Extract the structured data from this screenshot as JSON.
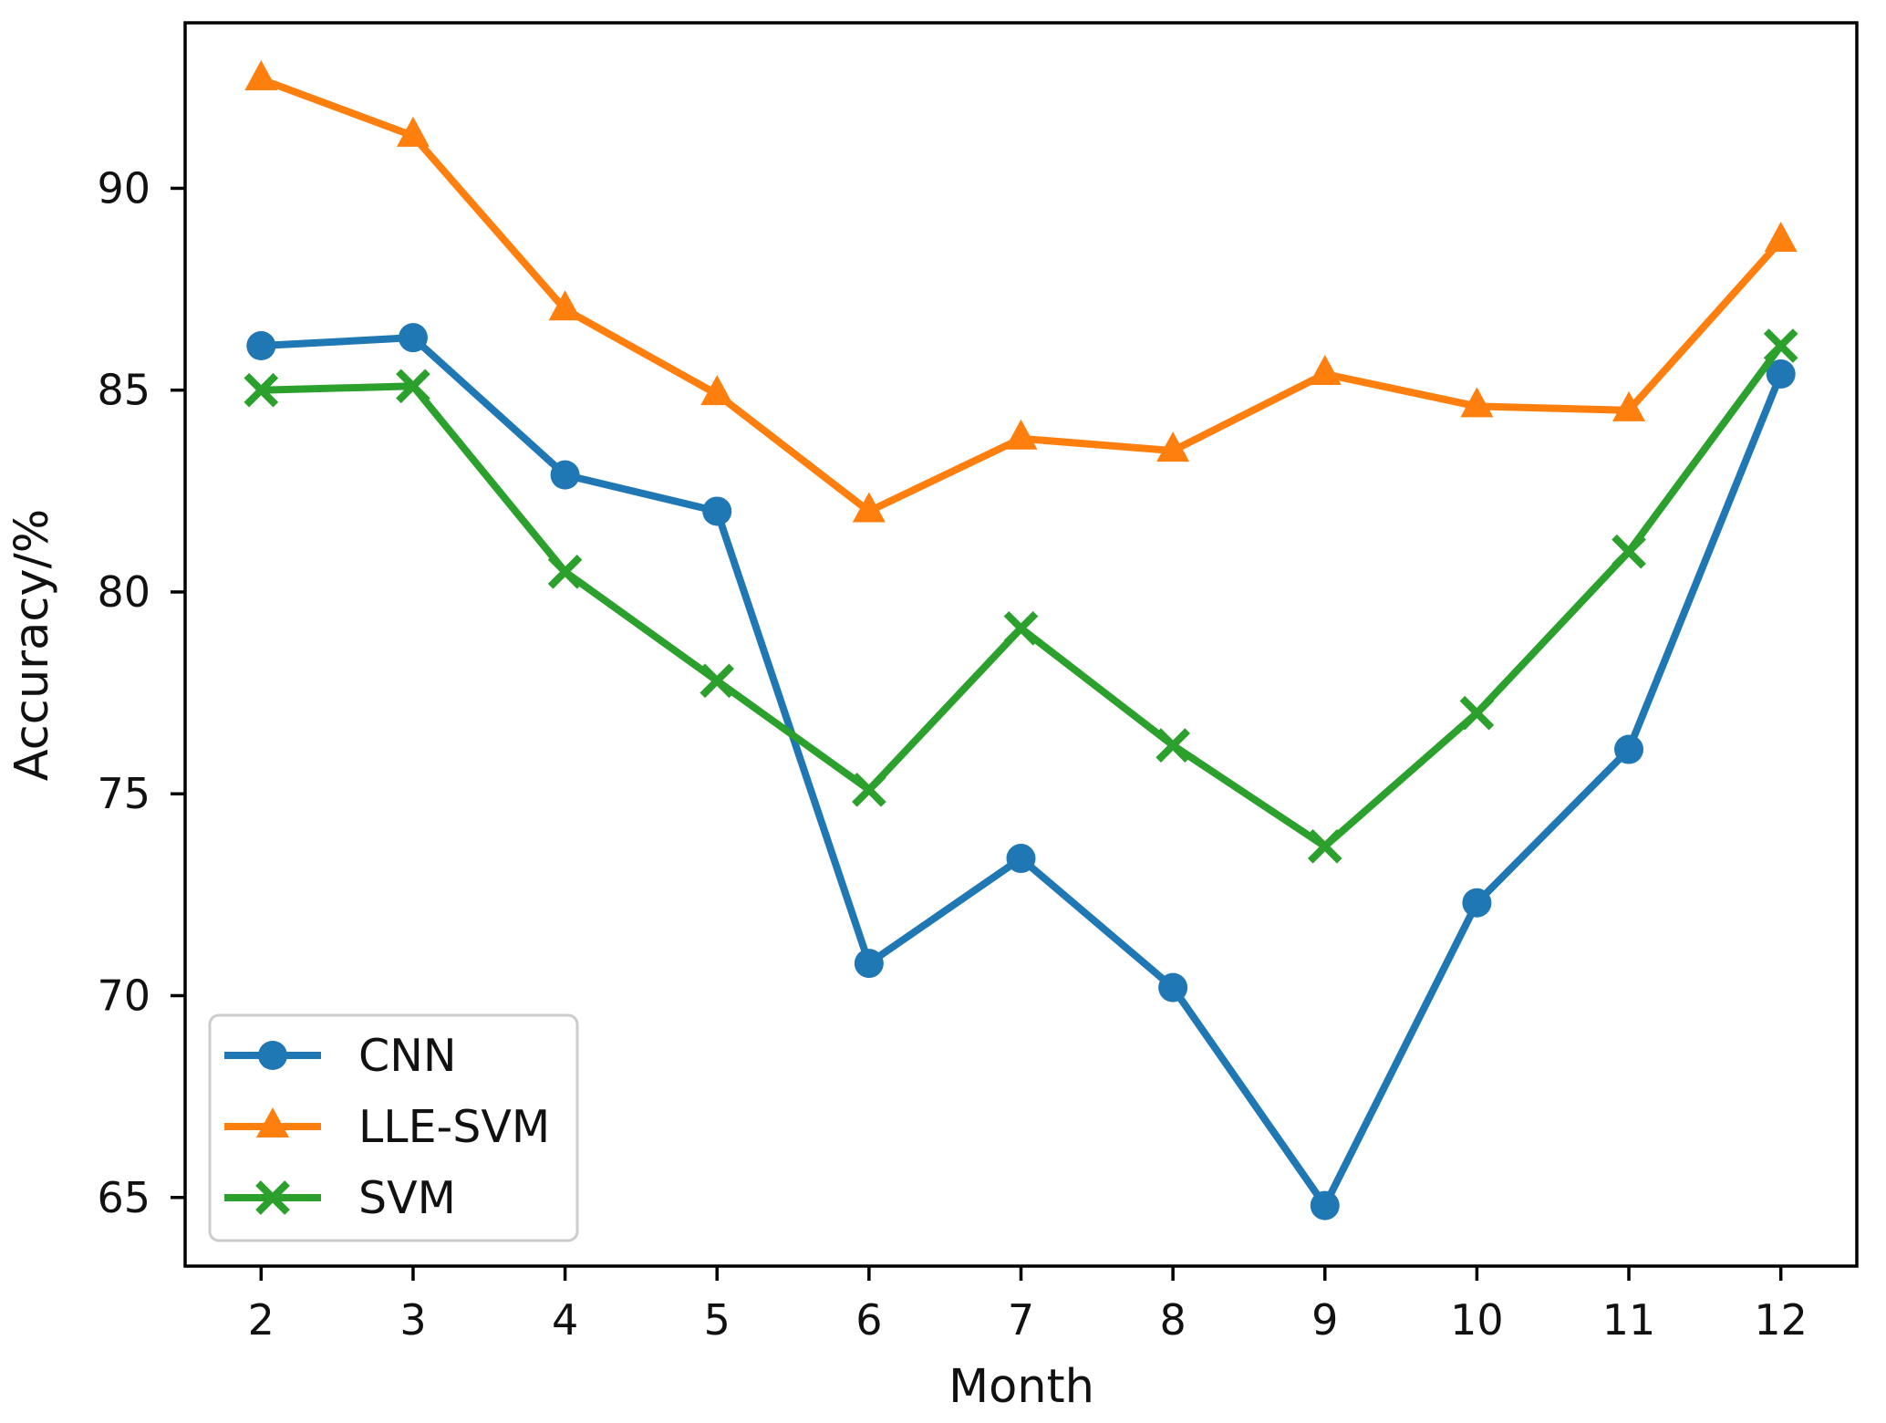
{
  "chart_data": {
    "type": "line",
    "title": "",
    "xlabel": "Month",
    "ylabel": "Accuracy/%",
    "x": [
      2,
      3,
      4,
      5,
      6,
      7,
      8,
      9,
      10,
      11,
      12
    ],
    "xticks": [
      "2",
      "3",
      "4",
      "5",
      "6",
      "7",
      "8",
      "9",
      "10",
      "11",
      "12"
    ],
    "yticks": [
      "65",
      "70",
      "75",
      "80",
      "85",
      "90"
    ],
    "ytick_values": [
      65,
      70,
      75,
      80,
      85,
      90
    ],
    "xlim": [
      1.5,
      12.5
    ],
    "ylim": [
      63.3,
      94.1
    ],
    "grid": false,
    "legend_position": "lower left",
    "frame_color": "#000000",
    "background_color": "#ffffff",
    "legend_border_color": "#cccccc",
    "series": [
      {
        "name": "CNN",
        "color": "#1f77b4",
        "marker": "circle",
        "values": [
          86.1,
          86.3,
          82.9,
          82.0,
          70.8,
          73.4,
          70.2,
          64.8,
          72.3,
          76.1,
          85.4
        ]
      },
      {
        "name": "LLE-SVM",
        "color": "#ff7f0e",
        "marker": "triangle-up",
        "values": [
          92.7,
          91.3,
          87.0,
          84.9,
          82.0,
          83.8,
          83.5,
          85.4,
          84.6,
          84.5,
          88.7
        ]
      },
      {
        "name": "SVM",
        "color": "#2ca02c",
        "marker": "x",
        "values": [
          85.0,
          85.1,
          80.5,
          77.8,
          75.1,
          79.1,
          76.2,
          73.7,
          77.0,
          81.0,
          86.1
        ]
      }
    ]
  }
}
